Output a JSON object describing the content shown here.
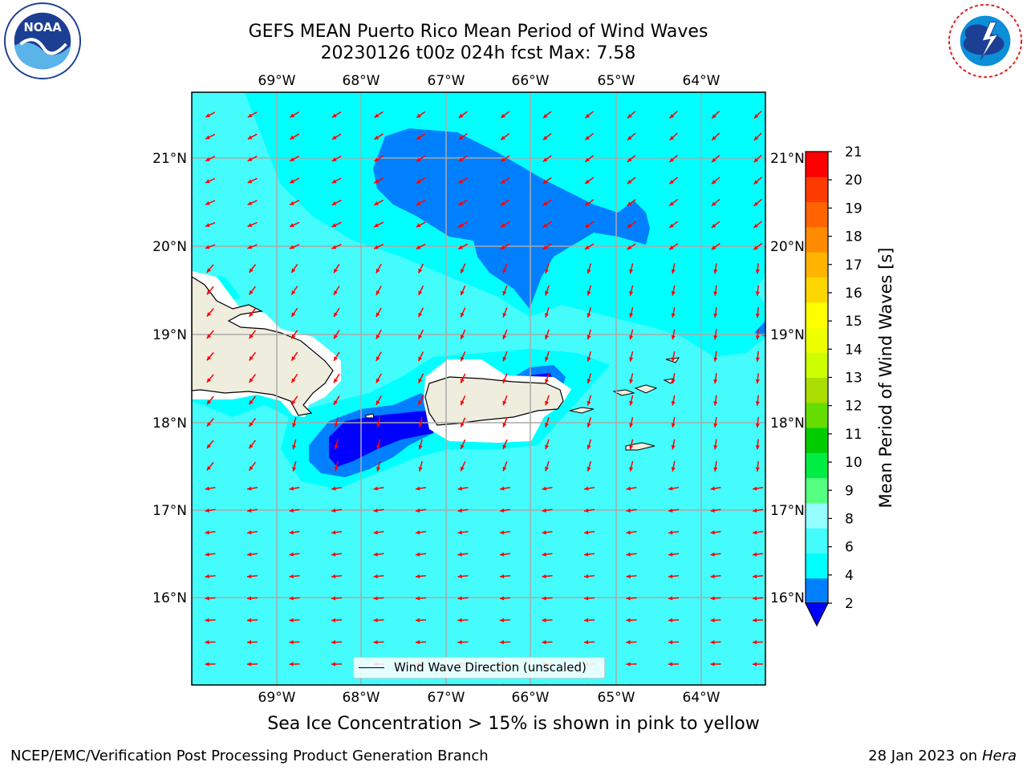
{
  "header": {
    "title_line1": "GEFS MEAN Puerto Rico Mean Period of Wind Waves",
    "title_line2": "20230126 t00z 024h fcst   Max: 7.58"
  },
  "logos": {
    "left": "noaa-logo",
    "right": "national-weather-service-logo"
  },
  "map": {
    "lon_ticks": [
      "69°W",
      "68°W",
      "67°W",
      "66°W",
      "65°W",
      "64°W"
    ],
    "lat_ticks": [
      "21°N",
      "20°N",
      "19°N",
      "18°N",
      "17°N",
      "16°N"
    ],
    "legend_label": "Wind Wave Direction (unscaled)",
    "arrow_color": "#ff0000",
    "land_color": "#efedde",
    "ocean_colors": {
      "4-6": "#00ffff",
      "6-8": "#44fcfc",
      "2-4": "#0080ff",
      "0-2": "#0000ff"
    }
  },
  "colorbar": {
    "label": "Mean Period of Wind Waves [s]",
    "ticks": [
      "21",
      "20",
      "19",
      "18",
      "17",
      "16",
      "15",
      "14",
      "13",
      "12",
      "11",
      "10",
      "9",
      "8",
      "6",
      "4",
      "2"
    ],
    "colors": [
      "#0080ff",
      "#00ffff",
      "#44fcfc",
      "#95ffff",
      "#55ff80",
      "#00ee44",
      "#00cc00",
      "#66dd00",
      "#aadd00",
      "#ccff00",
      "#eeff00",
      "#ffff00",
      "#ffd700",
      "#ffb400",
      "#ff8c00",
      "#ff6400",
      "#ff3c00",
      "#ff0000"
    ],
    "under_color": "#0000ff"
  },
  "footer": {
    "note": "Sea Ice Concentration > 15% is shown in pink to yellow",
    "left": "NCEP/EMC/Verification Post Processing Product Generation Branch",
    "right_date": "28 Jan 2023 on ",
    "right_host": "Hera"
  }
}
